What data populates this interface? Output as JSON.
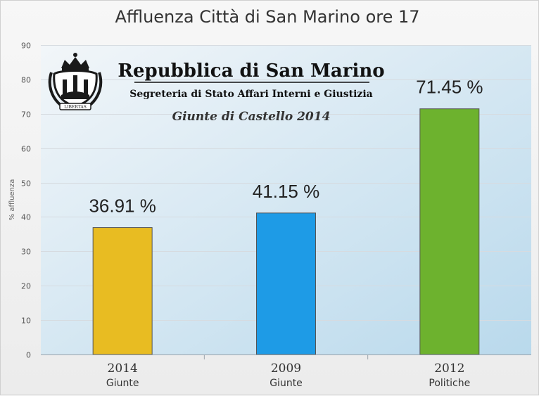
{
  "chart_data": {
    "type": "bar",
    "title": "Affluenza Città di San Marino ore 17",
    "ylabel": "% affluenza",
    "xlabel": "",
    "ylim": [
      0,
      90
    ],
    "yticks": [
      0,
      10,
      20,
      30,
      40,
      50,
      60,
      70,
      80,
      90
    ],
    "grid": true,
    "categories": [
      {
        "year": "2014",
        "type": "Giunte"
      },
      {
        "year": "2009",
        "type": "Giunte"
      },
      {
        "year": "2012",
        "type": "Politiche"
      }
    ],
    "values": [
      36.91,
      41.15,
      71.45
    ],
    "value_labels": [
      "36.91 %",
      "41.15 %",
      "71.45 %"
    ],
    "bar_colors": [
      "#e8bc22",
      "#1e9be6",
      "#6db22e"
    ]
  },
  "banner": {
    "title": "Repubblica di San Marino",
    "subtitle": "Segreteria di Stato Affari Interni e Giustizia",
    "event": "Giunte di Castello 2014",
    "emblem_motto": "LIBERTAS"
  },
  "colors": {
    "plot_bg_start": "#f2f6f9",
    "plot_bg_end": "#b9d9ec",
    "grid": "#d6dbe0",
    "bar_stroke": "#555555"
  }
}
